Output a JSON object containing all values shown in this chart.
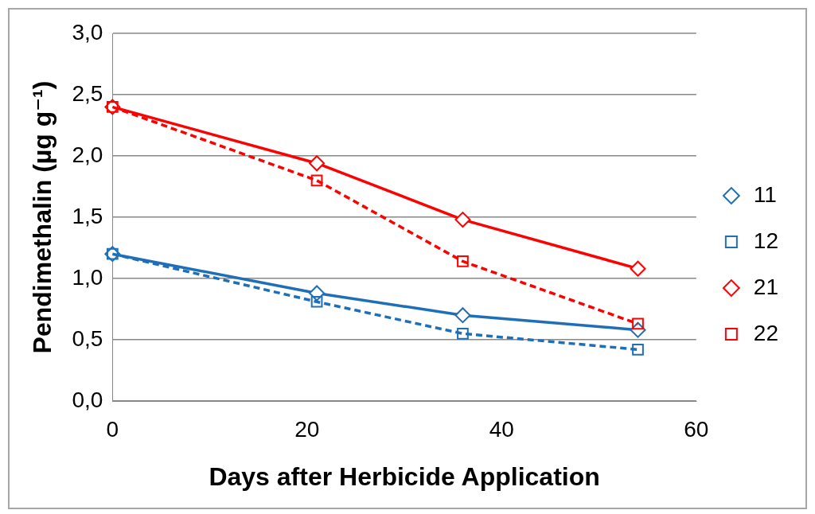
{
  "chart_data": {
    "type": "line",
    "xlabel": "Days after Herbicide Application",
    "ylabel": "Pendimethalin (µg g⁻¹)",
    "x": [
      0,
      21,
      36,
      54
    ],
    "series": [
      {
        "name": "11",
        "color": "#1f6fb8",
        "values": [
          1.2,
          0.88,
          0.7,
          0.58
        ],
        "marker": "diamond",
        "line_style": "solid"
      },
      {
        "name": "12",
        "color": "#1f6fb8",
        "values": [
          1.2,
          0.81,
          0.55,
          0.42
        ],
        "marker": "square",
        "line_style": "dashed"
      },
      {
        "name": "21",
        "color": "#ff0000",
        "values": [
          2.4,
          1.94,
          1.48,
          1.08
        ],
        "marker": "diamond",
        "line_style": "solid"
      },
      {
        "name": "22",
        "color": "#ff0000",
        "values": [
          2.4,
          1.8,
          1.14,
          0.63
        ],
        "marker": "square",
        "line_style": "dashed"
      }
    ],
    "xlim": [
      0,
      60
    ],
    "xticks": [
      0,
      20,
      40,
      60
    ],
    "ylim": [
      0,
      3
    ],
    "yticks": [
      {
        "value": 0,
        "label": "0,0"
      },
      {
        "value": 0.5,
        "label": "0,5"
      },
      {
        "value": 1,
        "label": "1,0"
      },
      {
        "value": 1.5,
        "label": "1,5"
      },
      {
        "value": 2,
        "label": "2,0"
      },
      {
        "value": 2.5,
        "label": "2,5"
      },
      {
        "value": 3,
        "label": "3,0"
      }
    ],
    "grid": "y",
    "legend": "right"
  }
}
